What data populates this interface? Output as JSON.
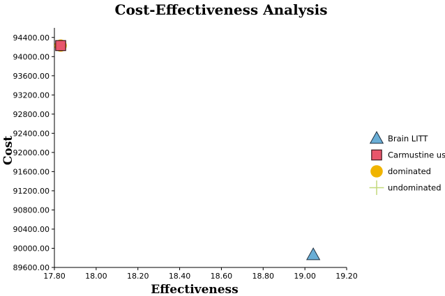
{
  "chart_data": {
    "type": "scatter",
    "title": "Cost-Effectiveness Analysis",
    "xlabel": "Effectiveness",
    "ylabel": "Cost",
    "xlim": [
      17.8,
      19.2
    ],
    "ylim": [
      89600,
      94600
    ],
    "x_ticks": [
      "17.80",
      "18.00",
      "18.20",
      "18.40",
      "18.60",
      "18.80",
      "19.00",
      "19.20"
    ],
    "y_ticks": [
      "89600.00",
      "90000.00",
      "90400.00",
      "90800.00",
      "91200.00",
      "91600.00",
      "92000.00",
      "92400.00",
      "92800.00",
      "93200.00",
      "93600.00",
      "94000.00",
      "94400.00"
    ],
    "grid": false,
    "legend_position": "right",
    "series": [
      {
        "name": "Brain LITT",
        "marker": "triangle",
        "color": "#6aaed6",
        "points": [
          {
            "x": 19.04,
            "y": 89860
          }
        ]
      },
      {
        "name": "Carmustine use",
        "marker": "square",
        "color": "#e8566b",
        "points": [
          {
            "x": 17.83,
            "y": 94230
          }
        ]
      },
      {
        "name": "dominated",
        "marker": "circle",
        "color": "#f0b400",
        "points": [
          {
            "x": 17.83,
            "y": 94230
          }
        ]
      },
      {
        "name": "undominated",
        "marker": "cross",
        "color": "#c2d97a",
        "points": []
      }
    ]
  }
}
